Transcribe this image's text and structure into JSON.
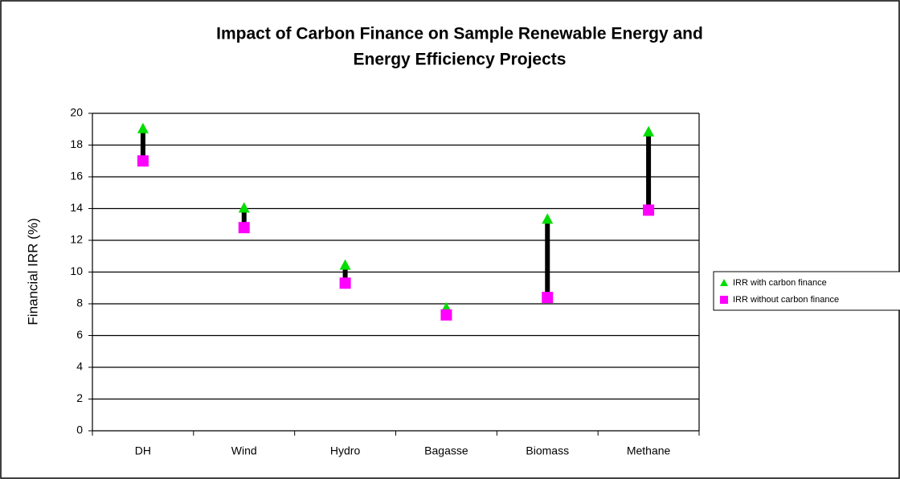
{
  "chart_data": {
    "type": "range",
    "title": [
      "Impact of Carbon Finance on Sample Renewable Energy and",
      "Energy Efficiency Projects"
    ],
    "y_label": "Financial IRR (%)",
    "categories": [
      "DH",
      "Wind",
      "Hydro",
      "Bagasse",
      "Biomass",
      "Methane"
    ],
    "series": [
      {
        "name": "IRR with carbon finance",
        "color": "#00dd00",
        "marker": "triangle",
        "values": [
          19,
          14,
          10.4,
          7.7,
          13.3,
          18.8
        ]
      },
      {
        "name": "IRR without carbon finance",
        "color": "#ff00ff",
        "marker": "square",
        "values": [
          17,
          12.8,
          9.3,
          7.3,
          8.4,
          13.9
        ]
      }
    ],
    "connector_color": "#000000",
    "ylim": [
      0,
      20
    ],
    "yticks": [
      0,
      2,
      4,
      6,
      8,
      10,
      12,
      14,
      16,
      18,
      20
    ],
    "grid": true,
    "legend": "right"
  }
}
